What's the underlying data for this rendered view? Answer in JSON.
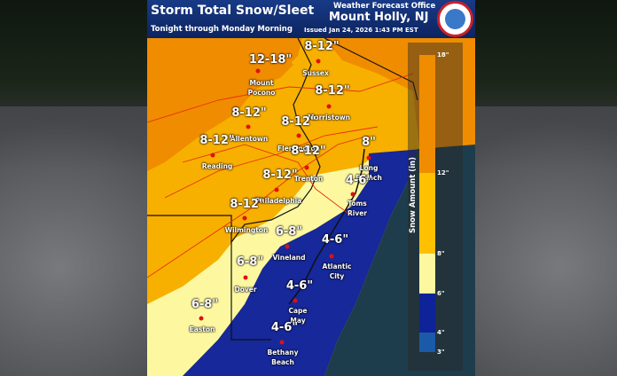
{
  "header": {
    "title": "Storm Total Snow/Sleet",
    "subtitle": "Tonight through Monday Morning",
    "office": "Weather Forecast Office",
    "location": "Mount Holly, NJ",
    "issued": "Issued Jan 24, 2026 1:43 PM EST"
  },
  "colors": {
    "12-18": "#f08c00",
    "8-12": "#f7b000",
    "6-8": "#fdf8a0",
    "4-6": "#16289a",
    "3-4": "#1a5aa8",
    "ocean": "#1e3d4c"
  },
  "locations": [
    {
      "amount": "12-18\"",
      "city": "Mount\nPocono"
    },
    {
      "amount": "8-12\"",
      "city": "Sussex"
    },
    {
      "amount": "8-12\"",
      "city": "Morristown"
    },
    {
      "amount": "8-12\"",
      "city": "Allentown"
    },
    {
      "amount": "8-12\"",
      "city": "Flemington"
    },
    {
      "amount": "8-12\"",
      "city": "Reading"
    },
    {
      "amount": "8-12\"",
      "city": "Trenton"
    },
    {
      "amount": "8\"",
      "city": "Long\nBranch"
    },
    {
      "amount": "4-6\"",
      "city": "Toms\nRiver"
    },
    {
      "amount": "8-12\"",
      "city": "Philadelphia"
    },
    {
      "amount": "8-12\"",
      "city": "Wilmington"
    },
    {
      "amount": "6-8\"",
      "city": "Vineland"
    },
    {
      "amount": "4-6\"",
      "city": "Atlantic\nCity"
    },
    {
      "amount": "6-8\"",
      "city": "Dover"
    },
    {
      "amount": "4-6\"",
      "city": "Cape\nMay"
    },
    {
      "amount": "6-8\"",
      "city": "Easton"
    },
    {
      "amount": "4-6\"",
      "city": "Bethany\nBeach"
    }
  ],
  "legend": {
    "title": "Snow Amount (in)",
    "ticks": [
      "18\"",
      "12\"",
      "8\"",
      "6\"",
      "4\"",
      "3\""
    ]
  }
}
